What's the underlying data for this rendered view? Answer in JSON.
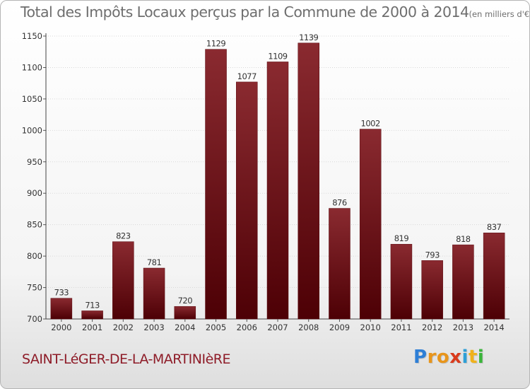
{
  "chart_data": {
    "type": "bar",
    "title": "Total des Impôts Locaux perçus par la Commune de 2000 à 2014",
    "unit_label": "(en milliers d'€)",
    "categories": [
      "2000",
      "2001",
      "2002",
      "2003",
      "2004",
      "2005",
      "2006",
      "2007",
      "2008",
      "2009",
      "2010",
      "2011",
      "2012",
      "2013",
      "2014"
    ],
    "values": [
      733,
      713,
      823,
      781,
      720,
      1129,
      1077,
      1109,
      1139,
      876,
      1002,
      819,
      793,
      818,
      837
    ],
    "ylim": [
      700,
      1150
    ],
    "yticks": [
      700,
      750,
      800,
      850,
      900,
      950,
      1000,
      1050,
      1100,
      1150
    ],
    "xlabel": "",
    "ylabel": "",
    "grid": true,
    "bar_color_top": "#8a2a30",
    "bar_color_bottom": "#4d0005"
  },
  "footer": {
    "commune": "SAINT-LéGER-DE-LA-MARTINIèRE",
    "commune_color": "#8e1c28"
  },
  "brand": {
    "letters": [
      "P",
      "r",
      "o",
      "x",
      "i",
      "t",
      "i"
    ],
    "colors": [
      "#2e7fd6",
      "#e8951b",
      "#e8951b",
      "#d93a1c",
      "#2e9fd6",
      "#f0b21c",
      "#3ab53a"
    ]
  }
}
